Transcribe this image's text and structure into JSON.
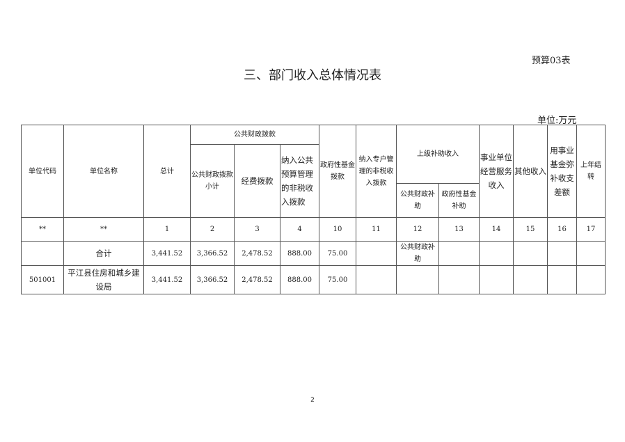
{
  "header": {
    "budget_no": "预算03表",
    "title": "三、部门收入总体情况表",
    "unit": "单位:万元"
  },
  "columns": {
    "unit_code": "单位代码",
    "unit_name": "单位名称",
    "total": "总计",
    "public_finance_group": "公共财政拨款",
    "pf_subtotal": "公共财政拨款小计",
    "funding": "经费拨款",
    "nontax_budget": "纳入公共预算管理的非税收入拨款",
    "gov_fund": "政府性基金拨款",
    "special_nontax": "纳入专户管理的非税收入拨款",
    "superior_group": "上级补助收入",
    "sup_public": "公共财政补助",
    "sup_fund": "政府性基金补助",
    "business": "事业单位经营服务收入",
    "other": "其他收入",
    "reserve": "用事业基金弥补收支差额",
    "carryover": "上年结转"
  },
  "index_row": [
    "**",
    "**",
    "1",
    "2",
    "3",
    "4",
    "10",
    "11",
    "12",
    "13",
    "14",
    "15",
    "16",
    "17"
  ],
  "rows": [
    [
      "",
      "合计",
      "3,441.52",
      "3,366.52",
      "2,478.52",
      "888.00",
      "75.00",
      "",
      "公共财政补助",
      "",
      "",
      "",
      "",
      ""
    ],
    [
      "501001",
      "平江县住房和城乡建设局",
      "3,441.52",
      "3,366.52",
      "2,478.52",
      "888.00",
      "75.00",
      "",
      "",
      "",
      "",
      "",
      "",
      ""
    ]
  ],
  "footer": {
    "page_number": "2"
  }
}
